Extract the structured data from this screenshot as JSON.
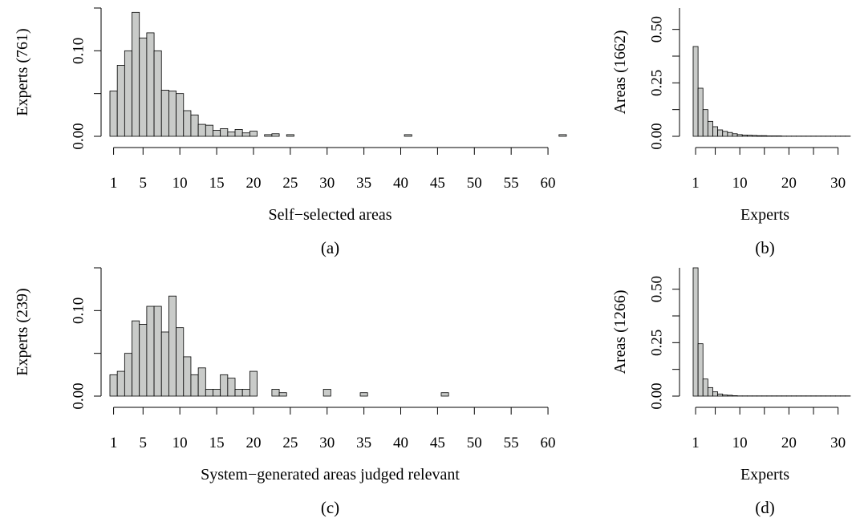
{
  "chart_data": [
    {
      "id": "a",
      "type": "bar",
      "caption": "(a)",
      "xlabel": "Self−selected areas",
      "ylabel": "Experts (761)",
      "ylim": [
        0,
        0.15
      ],
      "yticks": [
        0.0,
        0.1
      ],
      "ytick_labels": [
        "0.00",
        "0.10"
      ],
      "xticks": [
        1,
        5,
        10,
        15,
        20,
        25,
        30,
        35,
        40,
        45,
        50,
        55,
        60
      ],
      "xlim": [
        0.5,
        62.5
      ],
      "x": [
        1,
        2,
        3,
        4,
        5,
        6,
        7,
        8,
        9,
        10,
        11,
        12,
        13,
        14,
        15,
        16,
        17,
        18,
        19,
        20,
        21,
        22,
        23,
        24,
        25,
        26,
        27,
        28,
        29,
        30,
        31,
        32,
        33,
        34,
        35,
        36,
        37,
        38,
        39,
        40,
        41,
        42,
        43,
        44,
        45,
        46,
        47,
        48,
        49,
        50,
        51,
        52,
        53,
        54,
        55,
        56,
        57,
        58,
        59,
        60,
        61,
        62
      ],
      "values": [
        0.053,
        0.083,
        0.1,
        0.145,
        0.115,
        0.121,
        0.1,
        0.054,
        0.053,
        0.05,
        0.03,
        0.025,
        0.014,
        0.013,
        0.007,
        0.009,
        0.005,
        0.008,
        0.004,
        0.006,
        0,
        0.002,
        0.003,
        0,
        0.002,
        0,
        0,
        0,
        0,
        0,
        0,
        0,
        0,
        0,
        0,
        0,
        0,
        0,
        0,
        0,
        0.002,
        0,
        0,
        0,
        0,
        0,
        0,
        0,
        0,
        0,
        0,
        0,
        0,
        0,
        0,
        0,
        0,
        0,
        0,
        0,
        0,
        0.002
      ]
    },
    {
      "id": "b",
      "type": "bar",
      "caption": "(b)",
      "xlabel": "Experts",
      "ylabel": "Areas (1662)",
      "ylim": [
        0,
        0.6
      ],
      "yticks": [
        0.0,
        0.25,
        0.5
      ],
      "ytick_labels": [
        "0.00",
        "0.25",
        "0.50"
      ],
      "xticks": [
        1,
        10,
        20,
        30
      ],
      "xlim": [
        0.5,
        33
      ],
      "x": [
        1,
        2,
        3,
        4,
        5,
        6,
        7,
        8,
        9,
        10,
        11,
        12,
        13,
        14,
        15,
        16,
        17,
        18,
        19,
        20,
        21,
        22,
        23,
        24,
        25,
        26,
        27,
        28,
        29,
        30,
        31,
        32
      ],
      "values": [
        0.42,
        0.225,
        0.125,
        0.07,
        0.045,
        0.03,
        0.023,
        0.018,
        0.012,
        0.008,
        0.006,
        0.005,
        0.004,
        0.003,
        0.003,
        0.002,
        0.002,
        0.002,
        0.001,
        0.001,
        0.001,
        0.001,
        0.001,
        0.001,
        0.001,
        0.001,
        0.001,
        0.001,
        0.001,
        0.001,
        0.001,
        0.001
      ]
    },
    {
      "id": "c",
      "type": "bar",
      "caption": "(c)",
      "xlabel": "System−generated areas judged relevant",
      "ylabel": "Experts (239)",
      "ylim": [
        0,
        0.15
      ],
      "yticks": [
        0.0,
        0.1
      ],
      "ytick_labels": [
        "0.00",
        "0.10"
      ],
      "xticks": [
        1,
        5,
        10,
        15,
        20,
        25,
        30,
        35,
        40,
        45,
        50,
        55,
        60
      ],
      "xlim": [
        0.5,
        62.5
      ],
      "x": [
        1,
        2,
        3,
        4,
        5,
        6,
        7,
        8,
        9,
        10,
        11,
        12,
        13,
        14,
        15,
        16,
        17,
        18,
        19,
        20,
        21,
        22,
        23,
        24,
        25,
        26,
        27,
        28,
        29,
        30,
        31,
        32,
        33,
        34,
        35,
        36,
        37,
        38,
        39,
        40,
        41,
        42,
        43,
        44,
        45,
        46,
        47,
        48,
        49,
        50,
        51,
        52,
        53,
        54,
        55,
        56,
        57,
        58,
        59,
        60,
        61,
        62
      ],
      "values": [
        0.025,
        0.029,
        0.05,
        0.088,
        0.084,
        0.105,
        0.105,
        0.075,
        0.117,
        0.08,
        0.046,
        0.025,
        0.033,
        0.008,
        0.008,
        0.025,
        0.021,
        0.008,
        0.008,
        0.029,
        0,
        0,
        0.008,
        0.004,
        0,
        0,
        0,
        0,
        0,
        0.008,
        0,
        0,
        0,
        0,
        0.004,
        0,
        0,
        0,
        0,
        0,
        0,
        0,
        0,
        0,
        0,
        0.004,
        0,
        0,
        0,
        0,
        0,
        0,
        0,
        0,
        0,
        0,
        0,
        0,
        0,
        0,
        0,
        0
      ]
    },
    {
      "id": "d",
      "type": "bar",
      "caption": "(d)",
      "xlabel": "Experts",
      "ylabel": "Areas (1266)",
      "ylim": [
        0,
        0.6
      ],
      "yticks": [
        0.0,
        0.25,
        0.5
      ],
      "ytick_labels": [
        "0.00",
        "0.25",
        "0.50"
      ],
      "xticks": [
        1,
        10,
        20,
        30
      ],
      "xlim": [
        0.5,
        33
      ],
      "x": [
        1,
        2,
        3,
        4,
        5,
        6,
        7,
        8,
        9,
        10,
        11,
        12,
        13,
        14,
        15,
        16,
        17,
        18,
        19,
        20,
        21,
        22,
        23,
        24,
        25,
        26,
        27,
        28,
        29,
        30,
        31,
        32
      ],
      "values": [
        0.6,
        0.245,
        0.08,
        0.04,
        0.02,
        0.01,
        0.005,
        0.004,
        0.002,
        0.001,
        0.001,
        0.001,
        0.001,
        0.001,
        0.001,
        0.001,
        0.001,
        0.001,
        0.001,
        0.001,
        0.001,
        0.001,
        0.001,
        0.001,
        0.001,
        0.001,
        0.001,
        0.001,
        0.001,
        0.001,
        0.001,
        0.001
      ]
    }
  ]
}
